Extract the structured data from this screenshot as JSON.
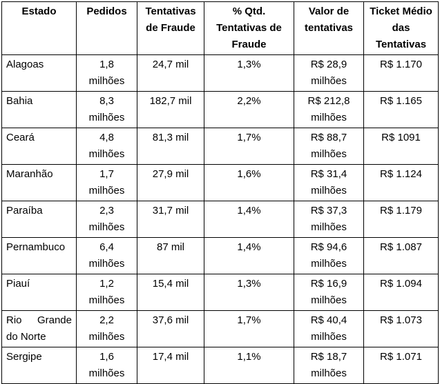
{
  "table": {
    "headers": [
      "Estado",
      "Pedidos",
      "Tentativas de Fraude",
      "% Qtd. Tentativas de Fraude",
      "Valor de tentativas",
      "Ticket Médio das Tentativas"
    ],
    "rows": [
      [
        "Alagoas",
        "1,8 milhões",
        "24,7 mil",
        "1,3%",
        "R$ 28,9 milhões",
        "R$ 1.170"
      ],
      [
        "Bahia",
        "8,3 milhões",
        "182,7 mil",
        "2,2%",
        "R$ 212,8 milhões",
        "R$ 1.165"
      ],
      [
        "Ceará",
        "4,8 milhões",
        "81,3 mil",
        "1,7%",
        "R$ 88,7 milhões",
        "R$ 1091"
      ],
      [
        "Maranhão",
        "1,7 milhões",
        "27,9 mil",
        "1,6%",
        "R$ 31,4 milhões",
        "R$ 1.124"
      ],
      [
        "Paraíba",
        "2,3 milhões",
        "31,7 mil",
        "1,4%",
        "R$ 37,3 milhões",
        "R$ 1.179"
      ],
      [
        "Pernambuco",
        "6,4 milhões",
        "87 mil",
        "1,4%",
        "R$ 94,6 milhões",
        "R$ 1.087"
      ],
      [
        "Piauí",
        "1,2 milhões",
        "15,4 mil",
        "1,3%",
        "R$ 16,9 milhões",
        "R$ 1.094"
      ],
      [
        "Rio Grande do Norte",
        "2,2 milhões",
        "37,6 mil",
        "1,7%",
        "R$ 40,4 milhões",
        "R$ 1.073"
      ],
      [
        "Sergipe",
        "1,6 milhões",
        "17,4 mil",
        "1,1%",
        "R$ 18,7 milhões",
        "R$ 1.071"
      ]
    ]
  },
  "colors": {
    "border": "#000000",
    "background": "#ffffff",
    "text": "#000000"
  }
}
